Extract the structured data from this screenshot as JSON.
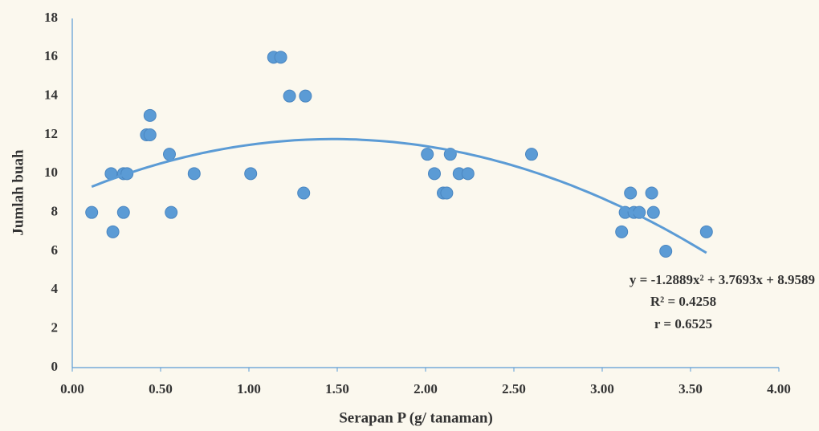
{
  "chart_data": {
    "type": "scatter",
    "x_label": "Serapan P (g/ tanaman)",
    "y_label": "Jumlah buah",
    "x": [
      0.11,
      0.23,
      0.22,
      0.29,
      0.31,
      0.29,
      0.42,
      0.44,
      0.44,
      0.55,
      0.56,
      0.69,
      1.01,
      1.14,
      1.18,
      1.23,
      1.32,
      1.31,
      2.01,
      2.05,
      2.1,
      2.12,
      2.14,
      2.19,
      2.24,
      2.6,
      3.11,
      3.13,
      3.16,
      3.18,
      3.21,
      3.28,
      3.29,
      3.36,
      3.59
    ],
    "values": [
      8,
      7,
      10,
      10,
      10,
      8,
      12,
      12,
      13,
      11,
      8,
      10,
      10,
      16,
      16,
      14,
      14,
      9,
      11,
      10,
      9,
      9,
      11,
      10,
      10,
      11,
      7,
      8,
      9,
      8,
      8,
      9,
      8,
      6,
      7
    ],
    "color": "#5b9bd5",
    "xlim": [
      0,
      4
    ],
    "xticks": [
      {
        "value": 0,
        "label": "0.00"
      },
      {
        "value": 0.5,
        "label": "0.50"
      },
      {
        "value": 1,
        "label": "1.00"
      },
      {
        "value": 1.5,
        "label": "1.50"
      },
      {
        "value": 2,
        "label": "2.00"
      },
      {
        "value": 2.5,
        "label": "2.50"
      },
      {
        "value": 3,
        "label": "3.00"
      },
      {
        "value": 3.5,
        "label": "3.50"
      },
      {
        "value": 4,
        "label": "4.00"
      }
    ],
    "ylim": [
      0,
      18
    ],
    "yticks": [
      0,
      2,
      4,
      6,
      8,
      10,
      12,
      14,
      16,
      18
    ],
    "trendline": {
      "order": 2,
      "color": "#5b9bd5"
    },
    "annotations": [
      "y = -1.2889x² + 3.7693x + 8.9589",
      "R² = 0.4258",
      "r = 0.6525"
    ]
  }
}
